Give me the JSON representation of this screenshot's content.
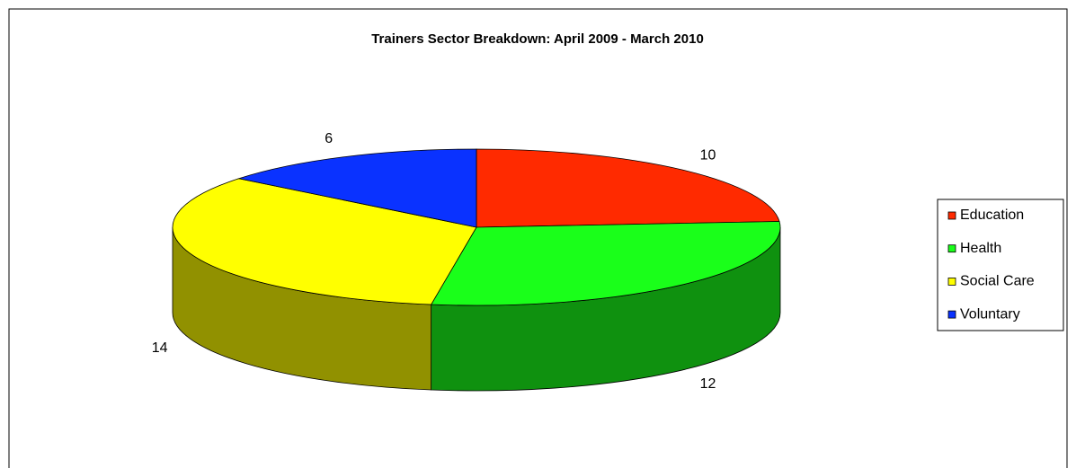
{
  "chart_data": {
    "type": "pie3d",
    "title": "Trainers Sector Breakdown: April 2009 - March 2010",
    "categories": [
      "Education",
      "Health",
      "Social Care",
      "Voluntary"
    ],
    "values": [
      10,
      12,
      14,
      6
    ],
    "colors": [
      "#ff2a00",
      "#1aff1a",
      "#ffff00",
      "#0a32ff"
    ],
    "legend": "right"
  }
}
